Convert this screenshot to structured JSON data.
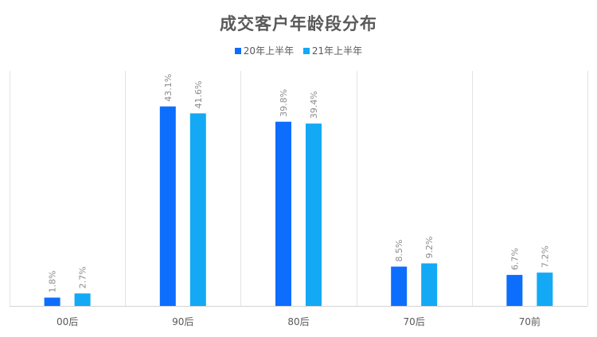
{
  "chart_data": {
    "type": "bar",
    "title": "成交客户年龄段分布",
    "categories": [
      "00后",
      "90后",
      "80后",
      "70后",
      "70前"
    ],
    "series": [
      {
        "name": "20年上半年",
        "values": [
          1.8,
          43.1,
          39.8,
          8.5,
          6.7
        ],
        "labels": [
          "1.8%",
          "43.1%",
          "39.8%",
          "8.5%",
          "6.7%"
        ],
        "color": "#0d6efd"
      },
      {
        "name": "21年上半年",
        "values": [
          2.7,
          41.6,
          39.4,
          9.2,
          7.2
        ],
        "labels": [
          "2.7%",
          "41.6%",
          "39.4%",
          "9.2%",
          "7.2%"
        ],
        "color": "#13a9f5"
      }
    ],
    "ylim": [
      0,
      50
    ],
    "value_unit": "%",
    "grid": "vertical category dividers",
    "legend_position": "top-center",
    "xlabel": "",
    "ylabel": ""
  }
}
